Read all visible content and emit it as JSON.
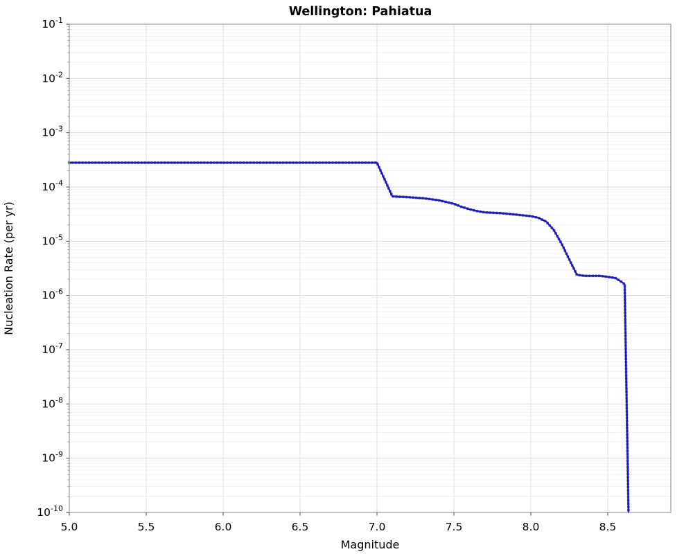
{
  "title": "Wellington: Pahiatua",
  "chart_data": {
    "type": "line",
    "title": "Wellington: Pahiatua",
    "xlabel": "Magnitude",
    "ylabel": "Nucleation Rate (per yr)",
    "xscale": "linear",
    "yscale": "log",
    "xlim": [
      5.0,
      8.91
    ],
    "ylim": [
      1e-10,
      0.1
    ],
    "grid": {
      "vertical_major": true,
      "horizontal_major": true,
      "horizontal_log_minor": true,
      "legend": "none"
    },
    "x_ticks": [
      {
        "value": 5.0,
        "label": "5.0"
      },
      {
        "value": 5.5,
        "label": "5.5"
      },
      {
        "value": 6.0,
        "label": "6.0"
      },
      {
        "value": 6.5,
        "label": "6.5"
      },
      {
        "value": 7.0,
        "label": "7.0"
      },
      {
        "value": 7.5,
        "label": "7.5"
      },
      {
        "value": 8.0,
        "label": "8.0"
      },
      {
        "value": 8.5,
        "label": "8.5"
      }
    ],
    "y_ticks": [
      {
        "mantissa": "10",
        "exponent": "-1"
      },
      {
        "mantissa": "10",
        "exponent": "-2"
      },
      {
        "mantissa": "10",
        "exponent": "-3"
      },
      {
        "mantissa": "10",
        "exponent": "-4"
      },
      {
        "mantissa": "10",
        "exponent": "-5"
      },
      {
        "mantissa": "10",
        "exponent": "-6"
      },
      {
        "mantissa": "10",
        "exponent": "-7"
      },
      {
        "mantissa": "10",
        "exponent": "-8"
      },
      {
        "mantissa": "10",
        "exponent": "-9"
      },
      {
        "mantissa": "10",
        "exponent": "-10"
      }
    ],
    "colors": {
      "line": "#1717d4",
      "marker": "#5f5f5f",
      "frame": "#999999",
      "grid_major_h": "#d9d9d9",
      "grid_minor_h": "#efefef",
      "grid_major_v": "#e2e2e2",
      "tick": "#444444",
      "text": "#000000"
    },
    "series": [
      {
        "name": "nucleation_rate",
        "marker_shape": "square",
        "points": [
          [
            5.0,
            0.00028
          ],
          [
            7.0,
            0.00028
          ],
          [
            7.1,
            6.7e-05
          ],
          [
            7.2,
            6.5e-05
          ],
          [
            7.3,
            6.2e-05
          ],
          [
            7.4,
            5.7e-05
          ],
          [
            7.5,
            4.9e-05
          ],
          [
            7.55,
            4.3e-05
          ],
          [
            7.6,
            3.9e-05
          ],
          [
            7.65,
            3.6e-05
          ],
          [
            7.7,
            3.4e-05
          ],
          [
            7.8,
            3.3e-05
          ],
          [
            7.9,
            3.1e-05
          ],
          [
            8.0,
            2.9e-05
          ],
          [
            8.05,
            2.7e-05
          ],
          [
            8.1,
            2.3e-05
          ],
          [
            8.15,
            1.6e-05
          ],
          [
            8.2,
            9e-06
          ],
          [
            8.25,
            4.6e-06
          ],
          [
            8.3,
            2.4e-06
          ],
          [
            8.35,
            2.3e-06
          ],
          [
            8.4,
            2.3e-06
          ],
          [
            8.45,
            2.3e-06
          ],
          [
            8.5,
            2.2e-06
          ],
          [
            8.55,
            2.1e-06
          ],
          [
            8.6,
            1.7e-06
          ],
          [
            8.61,
            1.6e-06
          ],
          [
            8.635,
            1e-10
          ]
        ]
      }
    ]
  }
}
